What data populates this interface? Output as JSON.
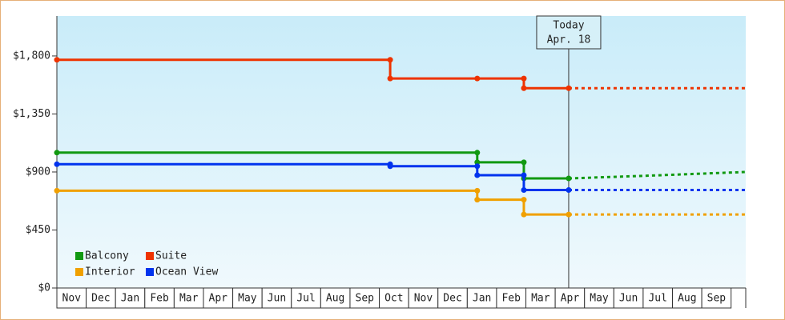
{
  "chart_data": {
    "type": "line",
    "step": true,
    "categories": [
      "Nov",
      "Dec",
      "Jan",
      "Feb",
      "Mar",
      "Apr",
      "May",
      "Jun",
      "Jul",
      "Aug",
      "Sep",
      "Oct",
      "Nov",
      "Dec",
      "Jan",
      "Feb",
      "Mar",
      "Apr",
      "May",
      "Jun",
      "Jul",
      "Aug",
      "Sep"
    ],
    "xlim": [
      0,
      23.5
    ],
    "ylim": [
      0,
      2110
    ],
    "yticks": [
      {
        "value": 0,
        "label": "$0"
      },
      {
        "value": 450,
        "label": "$450"
      },
      {
        "value": 900,
        "label": "$900"
      },
      {
        "value": 1350,
        "label": "$1,350"
      },
      {
        "value": 1800,
        "label": "$1,800"
      }
    ],
    "today": {
      "x": 17.46,
      "label": "Today",
      "date": "Apr. 18"
    },
    "legend": "lower-left",
    "series": [
      {
        "name": "Balcony",
        "color": "#119911",
        "x": [
          0,
          14.34,
          14.34,
          15.93,
          15.93,
          17.46
        ],
        "values": [
          1050,
          1050,
          975,
          975,
          850,
          850
        ],
        "forecast_x": [
          17.46,
          20,
          23.5
        ],
        "forecast_values": [
          850,
          870,
          900
        ]
      },
      {
        "name": "Suite",
        "color": "#ee3300",
        "x": [
          0,
          11.37,
          11.37,
          14.34,
          15.93,
          15.93,
          17.46
        ],
        "values": [
          1770,
          1770,
          1625,
          1625,
          1625,
          1550,
          1550
        ],
        "forecast_x": [
          17.46,
          23.5
        ],
        "forecast_values": [
          1550,
          1550
        ]
      },
      {
        "name": "Interior",
        "color": "#f0a000",
        "x": [
          0,
          14.34,
          14.34,
          15.93,
          15.93,
          17.46
        ],
        "values": [
          755,
          755,
          685,
          685,
          570,
          570
        ],
        "forecast_x": [
          17.46,
          23.5
        ],
        "forecast_values": [
          570,
          570
        ]
      },
      {
        "name": "Ocean View",
        "color": "#0033ee",
        "x": [
          0,
          11.37,
          11.37,
          14.34,
          14.34,
          15.93,
          15.93,
          17.46
        ],
        "values": [
          960,
          960,
          945,
          945,
          875,
          875,
          760,
          760
        ],
        "forecast_x": [
          17.46,
          23.5
        ],
        "forecast_values": [
          760,
          760
        ]
      }
    ]
  }
}
